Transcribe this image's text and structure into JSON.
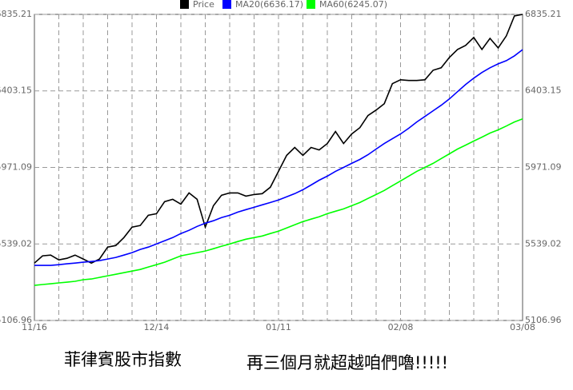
{
  "chart_data": {
    "type": "line",
    "categories": [
      "11/16",
      null,
      null,
      null,
      null,
      null,
      null,
      null,
      null,
      null,
      null,
      null,
      null,
      null,
      null,
      "12/14",
      null,
      null,
      null,
      null,
      null,
      null,
      null,
      null,
      null,
      null,
      null,
      null,
      null,
      null,
      "01/11",
      null,
      null,
      null,
      null,
      null,
      null,
      null,
      null,
      null,
      null,
      null,
      null,
      null,
      null,
      "02/08",
      null,
      null,
      null,
      null,
      null,
      null,
      null,
      null,
      null,
      null,
      null,
      null,
      null,
      null,
      "03/08"
    ],
    "series": [
      {
        "name": "Price",
        "color": "#000000",
        "values": [
          5431,
          5472,
          5476,
          5449,
          5458,
          5476,
          5454,
          5431,
          5454,
          5521,
          5530,
          5575,
          5634,
          5643,
          5701,
          5710,
          5778,
          5791,
          5764,
          5827,
          5791,
          5634,
          5755,
          5814,
          5827,
          5827,
          5809,
          5818,
          5823,
          5859,
          5949,
          6039,
          6084,
          6039,
          6084,
          6070,
          6106,
          6174,
          6106,
          6160,
          6196,
          6264,
          6295,
          6331,
          6444,
          6466,
          6462,
          6462,
          6466,
          6520,
          6534,
          6592,
          6637,
          6660,
          6705,
          6637,
          6700,
          6646,
          6714,
          6826,
          6835
        ]
      },
      {
        "name": "MA20(6636.17)",
        "color": "#0000ff",
        "values": [
          5418,
          5418,
          5418,
          5422,
          5427,
          5431,
          5436,
          5440,
          5445,
          5454,
          5463,
          5476,
          5490,
          5508,
          5521,
          5539,
          5557,
          5575,
          5598,
          5616,
          5638,
          5656,
          5670,
          5688,
          5701,
          5719,
          5733,
          5746,
          5760,
          5773,
          5787,
          5805,
          5823,
          5845,
          5872,
          5899,
          5922,
          5949,
          5971,
          5994,
          6016,
          6043,
          6075,
          6106,
          6133,
          6160,
          6192,
          6228,
          6259,
          6291,
          6322,
          6358,
          6399,
          6439,
          6475,
          6507,
          6534,
          6556,
          6574,
          6601,
          6636.17
        ]
      },
      {
        "name": "MA60(6245.07)",
        "color": "#00ff00",
        "values": [
          5305,
          5310,
          5314,
          5319,
          5323,
          5328,
          5337,
          5341,
          5350,
          5359,
          5368,
          5377,
          5386,
          5395,
          5409,
          5422,
          5436,
          5454,
          5472,
          5481,
          5490,
          5499,
          5512,
          5526,
          5539,
          5553,
          5566,
          5575,
          5584,
          5598,
          5611,
          5629,
          5647,
          5665,
          5679,
          5692,
          5710,
          5724,
          5737,
          5755,
          5773,
          5796,
          5818,
          5841,
          5868,
          5895,
          5922,
          5949,
          5971,
          5994,
          6021,
          6048,
          6075,
          6097,
          6120,
          6142,
          6165,
          6183,
          6205,
          6228,
          6245.07
        ]
      }
    ],
    "ylim": [
      5106.96,
      6835.21
    ],
    "yticks": [
      5106.96,
      5539.02,
      5971.09,
      6403.15,
      6835.21
    ],
    "grid": true,
    "annotations": [
      "菲律賓股市指數",
      "再三個月就超越咱們嚕!!!!!"
    ]
  }
}
